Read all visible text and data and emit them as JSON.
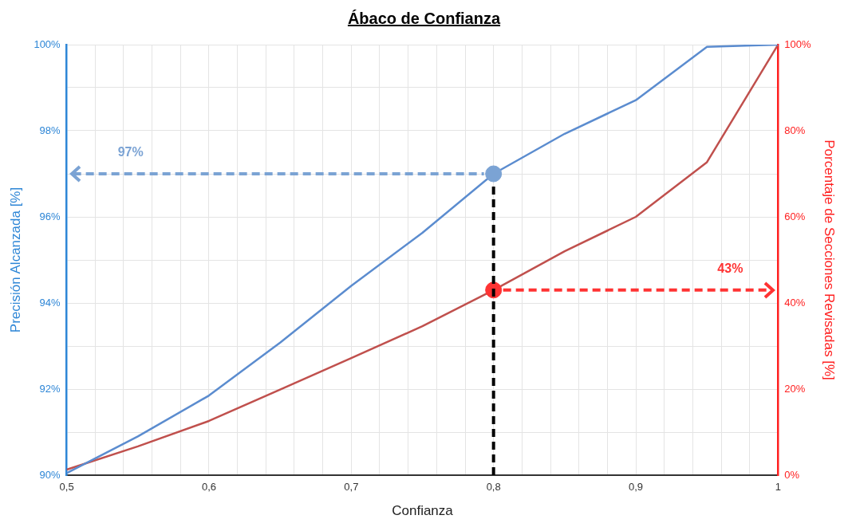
{
  "chart_data": {
    "type": "line",
    "title": "Ábaco de Confianza",
    "xlabel": "Confianza",
    "ylabel": "Precisión Alcanzada [%]",
    "y2label": "Porcentaje de Secciones Revisadas [%]",
    "x": [
      0.5,
      0.55,
      0.6,
      0.65,
      0.7,
      0.75,
      0.8,
      0.85,
      0.9,
      0.95,
      1
    ],
    "series": [
      {
        "color": "#5b8ccf",
        "values": [
          90.05,
          90.9,
          91.85,
          93.08,
          94.4,
          95.63,
          97.0,
          97.93,
          98.71,
          99.95,
          100
        ]
      },
      {
        "color": "#c0504d",
        "axis": "y2",
        "values": [
          1.3,
          6.7,
          12.6,
          19.9,
          27.2,
          34.6,
          43,
          52,
          60,
          72.7,
          100
        ]
      },
      {
        "type": "scatter",
        "color": "#7ba3d4",
        "marker": "circle",
        "x": [
          0.8
        ],
        "values": [
          97
        ]
      },
      {
        "type": "scatter",
        "color": "#ff3333",
        "marker": "circle",
        "axis": "y2",
        "x": [
          0.8
        ],
        "values": [
          43
        ]
      }
    ],
    "xlim": [
      0.5,
      1
    ],
    "xticks": [
      {
        "value": 0.5,
        "label": "0,5"
      },
      {
        "value": 0.52,
        "label": null
      },
      {
        "value": 0.54,
        "label": null
      },
      {
        "value": 0.56,
        "label": null
      },
      {
        "value": 0.58,
        "label": null
      },
      {
        "value": 0.6,
        "label": "0,6"
      },
      {
        "value": 0.62,
        "label": null
      },
      {
        "value": 0.64,
        "label": null
      },
      {
        "value": 0.66,
        "label": null
      },
      {
        "value": 0.68,
        "label": null
      },
      {
        "value": 0.7,
        "label": "0,7"
      },
      {
        "value": 0.72,
        "label": null
      },
      {
        "value": 0.74,
        "label": null
      },
      {
        "value": 0.76,
        "label": null
      },
      {
        "value": 0.78,
        "label": null
      },
      {
        "value": 0.8,
        "label": "0,8"
      },
      {
        "value": 0.82,
        "label": null
      },
      {
        "value": 0.84,
        "label": null
      },
      {
        "value": 0.86,
        "label": null
      },
      {
        "value": 0.88,
        "label": null
      },
      {
        "value": 0.9,
        "label": "0,9"
      },
      {
        "value": 0.92,
        "label": null
      },
      {
        "value": 0.94,
        "label": null
      },
      {
        "value": 0.96,
        "label": null
      },
      {
        "value": 0.98,
        "label": null
      },
      1
    ],
    "ylim": [
      90,
      100
    ],
    "yticks": [
      {
        "value": 90,
        "label": "90%"
      },
      {
        "value": 91,
        "label": null
      },
      {
        "value": 92,
        "label": "92%"
      },
      {
        "value": 93,
        "label": null
      },
      {
        "value": 94,
        "label": "94%"
      },
      {
        "value": 95,
        "label": null
      },
      {
        "value": 96,
        "label": "96%"
      },
      {
        "value": 97,
        "label": null
      },
      {
        "value": 98,
        "label": "98%"
      },
      {
        "value": 99,
        "label": null
      },
      {
        "value": 100,
        "label": "100%"
      }
    ],
    "y2lim": [
      0,
      100
    ],
    "y2ticks": [
      {
        "value": 0,
        "label": "0%"
      },
      {
        "value": 20,
        "label": "20%"
      },
      {
        "value": 40,
        "label": "40%"
      },
      {
        "value": 60,
        "label": "60%"
      },
      {
        "value": 80,
        "label": "80%"
      },
      {
        "value": 100,
        "label": "100%"
      }
    ],
    "grid": true,
    "legend": false,
    "marker": "none",
    "line_style": "solid",
    "ref_lines": [
      {
        "axis": "y",
        "value": 97,
        "label": "97%",
        "color": "#7ba3d4",
        "line_style": "dashed"
      },
      {
        "axis": "y2",
        "value": 43,
        "label": "43%",
        "color": "#ff3333",
        "line_style": "dashed"
      },
      {
        "axis": "x",
        "value": 0.8,
        "color": "#000000",
        "line_style": "dashed"
      }
    ]
  }
}
